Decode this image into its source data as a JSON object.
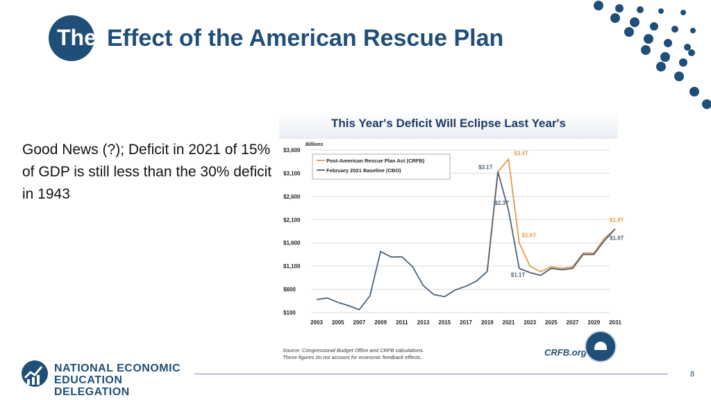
{
  "slide": {
    "title_prefix": "The",
    "title_rest": "Effect of the American Rescue Plan",
    "body_text": "Good News (?); Deficit in 2021 of 15% of GDP is still less than the 30% deficit in 1943",
    "page_number": "8",
    "logo_line1": "NATIONAL ECONOMIC",
    "logo_line2": "EDUCATION DELEGATION",
    "brand_color": "#1f4e79"
  },
  "chart_data": {
    "type": "line",
    "title": "This Year's Deficit Will Eclipse Last Year's",
    "ylabel": "Billions",
    "ylim": [
      100,
      3600
    ],
    "y_ticks": [
      {
        "value": 3600,
        "label": "$3,600"
      },
      {
        "value": 3100,
        "label": "$3,100"
      },
      {
        "value": 2600,
        "label": "$2,600"
      },
      {
        "value": 2100,
        "label": "$2,100"
      },
      {
        "value": 1600,
        "label": "$1,600"
      },
      {
        "value": 1100,
        "label": "$1,100"
      },
      {
        "value": 600,
        "label": "$600"
      },
      {
        "value": 100,
        "label": "$100"
      }
    ],
    "x_ticks": [
      "2003",
      "2005",
      "2007",
      "2009",
      "2011",
      "2013",
      "2015",
      "2017",
      "2019",
      "2021",
      "2023",
      "2025",
      "2027",
      "2029",
      "2031"
    ],
    "series": [
      {
        "name": "Post-American Rescue Plan Act (CRFB)",
        "color": "#e39a4b",
        "x": [
          2019,
          2020,
          2021,
          2022,
          2023,
          2024,
          2025,
          2026,
          2027,
          2028,
          2029,
          2030,
          2031
        ],
        "values": [
          984,
          3130,
          3400,
          1600,
          1100,
          980,
          1080,
          1050,
          1080,
          1380,
          1380,
          1700,
          1900
        ]
      },
      {
        "name": "February 2021 Baseline (CBO)",
        "color": "#4a6178",
        "x": [
          2003,
          2004,
          2005,
          2006,
          2007,
          2008,
          2009,
          2010,
          2011,
          2012,
          2013,
          2014,
          2015,
          2016,
          2017,
          2018,
          2019,
          2020,
          2021,
          2022,
          2023,
          2024,
          2025,
          2026,
          2027,
          2028,
          2029,
          2030,
          2031
        ],
        "values": [
          378,
          413,
          318,
          248,
          161,
          459,
          1413,
          1294,
          1300,
          1087,
          680,
          485,
          442,
          585,
          665,
          779,
          984,
          3130,
          2300,
          1050,
          960,
          900,
          1050,
          1020,
          1050,
          1350,
          1350,
          1650,
          1900
        ]
      }
    ],
    "annotations": [
      {
        "text": "$3.4T",
        "x": 2021,
        "y": 3400,
        "color": "#e39a4b"
      },
      {
        "text": "$3.1T",
        "x": 2020,
        "y": 3130,
        "color": "#4a6178"
      },
      {
        "text": "$2.3T",
        "x": 2021,
        "y": 2300,
        "color": "#4a6178"
      },
      {
        "text": "$1.6T",
        "x": 2022,
        "y": 1600,
        "color": "#e39a4b"
      },
      {
        "text": "$1.1T",
        "x": 2022,
        "y": 1050,
        "color": "#4a6178"
      },
      {
        "text": "$1.9T",
        "x": 2031,
        "y": 1900,
        "color": "#e39a4b"
      },
      {
        "text": "$1.9T",
        "x": 2031,
        "y": 1900,
        "color": "#4a6178"
      }
    ],
    "source_line1": "Source: Congressional Budget Office and CRFB calculations.",
    "source_line2": "These figures do not account for economic feedback effects.",
    "brand": "CRFB.org"
  }
}
